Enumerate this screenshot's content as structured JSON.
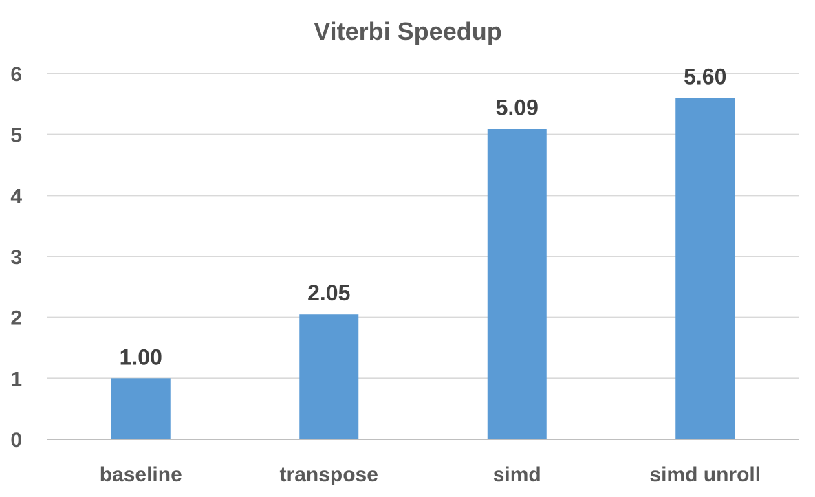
{
  "chart_data": {
    "type": "bar",
    "title": "Viterbi Speedup",
    "xlabel": "",
    "ylabel": "",
    "categories": [
      "baseline",
      "transpose",
      "simd",
      "simd unroll"
    ],
    "values": [
      1.0,
      2.05,
      5.09,
      5.6
    ],
    "value_labels": [
      "1.00",
      "2.05",
      "5.09",
      "5.60"
    ],
    "ylim": [
      0,
      6
    ],
    "yticks": [
      0,
      1,
      2,
      3,
      4,
      5,
      6
    ],
    "ytick_labels": [
      "0",
      "1",
      "2",
      "3",
      "4",
      "5",
      "6"
    ],
    "grid": true,
    "legend": "none",
    "colors": {
      "bar": "#5B9BD5",
      "grid": "#D9D9D9",
      "axis": "#BFBFBF",
      "text": "#595959",
      "value_text": "#404040"
    }
  }
}
